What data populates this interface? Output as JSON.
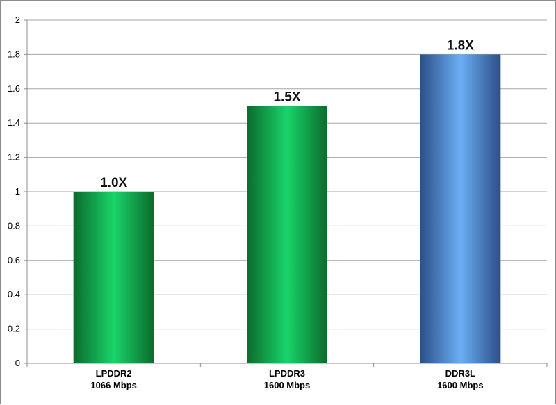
{
  "chart_data": {
    "type": "bar",
    "title": "",
    "xlabel": "",
    "ylabel": "",
    "ylim": [
      0,
      2
    ],
    "yticks": [
      "0",
      "0.2",
      "0.4",
      "0.6",
      "0.8",
      "1",
      "1.2",
      "1.4",
      "1.6",
      "1.8",
      "2"
    ],
    "grid": true,
    "legend": "none",
    "categories": [
      {
        "line1": "LPDDR2",
        "line2": "1066 Mbps"
      },
      {
        "line1": "LPDDR3",
        "line2": "1600 Mbps"
      },
      {
        "line1": "DDR3L",
        "line2": "1600 Mbps"
      }
    ],
    "values": [
      1.0,
      1.5,
      1.8
    ],
    "data_labels": [
      "1.0X",
      "1.5X",
      "1.8X"
    ],
    "bar_colors": [
      "green",
      "green",
      "blue"
    ]
  },
  "colors": {
    "green_dark": "#0b6b2c",
    "green_light": "#19d46a",
    "blue_dark": "#2c4f86",
    "blue_light": "#6aaef5",
    "gridline": "#a6a6a6",
    "axis": "#8c8c8c"
  }
}
